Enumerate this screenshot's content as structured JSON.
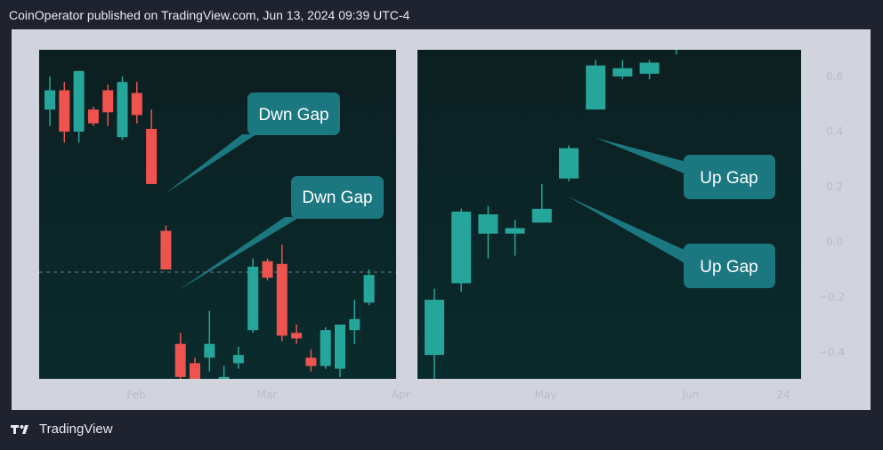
{
  "header": {
    "text": "CoinOperator published on TradingView.com, Jun 13, 2024 09:39 UTC-4"
  },
  "footer": {
    "brand": "TradingView"
  },
  "colors": {
    "up": "#26a69a",
    "down": "#ef5350",
    "panel": "#0b2224",
    "frame": "#d1d4dc",
    "callout": "#1b7780"
  },
  "chart_data": {
    "type": "candlestick",
    "title": "",
    "ylim": [
      -0.5,
      0.7
    ],
    "y_ticks": [
      "0.6",
      "0.4",
      "0.2",
      "0.0",
      "−0.2",
      "−0.4"
    ],
    "y_tick_values": [
      0.6,
      0.4,
      0.2,
      0.0,
      -0.2,
      -0.4
    ],
    "x_ticks": [
      "Feb",
      "Mar",
      "Apr",
      "May",
      "Jun",
      "24"
    ],
    "reference_line": -0.11,
    "panels": [
      {
        "name": "left",
        "candles": [
          {
            "o": 0.48,
            "c": 0.55,
            "h": 0.6,
            "l": 0.42
          },
          {
            "o": 0.55,
            "c": 0.4,
            "h": 0.58,
            "l": 0.36
          },
          {
            "o": 0.4,
            "c": 0.62,
            "h": 0.62,
            "l": 0.36
          },
          {
            "o": 0.48,
            "c": 0.43,
            "h": 0.49,
            "l": 0.42
          },
          {
            "o": 0.55,
            "c": 0.47,
            "h": 0.57,
            "l": 0.42
          },
          {
            "o": 0.38,
            "c": 0.58,
            "h": 0.6,
            "l": 0.37
          },
          {
            "o": 0.54,
            "c": 0.46,
            "h": 0.58,
            "l": 0.43
          },
          {
            "o": 0.41,
            "c": 0.21,
            "h": 0.48,
            "l": 0.21
          },
          {
            "o": 0.04,
            "c": -0.1,
            "h": 0.06,
            "l": -0.1
          },
          {
            "o": -0.37,
            "c": -0.49,
            "h": -0.33,
            "l": -0.5
          },
          {
            "o": -0.44,
            "c": -0.52,
            "h": -0.42,
            "l": -0.56
          },
          {
            "o": -0.42,
            "c": -0.37,
            "h": -0.25,
            "l": -0.47
          },
          {
            "o": -0.5,
            "c": -0.49,
            "h": -0.45,
            "l": -0.52
          },
          {
            "o": -0.44,
            "c": -0.41,
            "h": -0.38,
            "l": -0.46
          },
          {
            "o": -0.32,
            "c": -0.09,
            "h": -0.06,
            "l": -0.33
          },
          {
            "o": -0.07,
            "c": -0.13,
            "h": -0.06,
            "l": -0.14
          },
          {
            "o": -0.08,
            "c": -0.34,
            "h": -0.01,
            "l": -0.36
          },
          {
            "o": -0.33,
            "c": -0.35,
            "h": -0.3,
            "l": -0.37
          },
          {
            "o": -0.42,
            "c": -0.45,
            "h": -0.39,
            "l": -0.47
          },
          {
            "o": -0.45,
            "c": -0.32,
            "h": -0.31,
            "l": -0.46
          },
          {
            "o": -0.46,
            "c": -0.3,
            "h": -0.3,
            "l": -0.49
          },
          {
            "o": -0.32,
            "c": -0.28,
            "h": -0.21,
            "l": -0.37
          },
          {
            "o": -0.22,
            "c": -0.12,
            "h": -0.1,
            "l": -0.23
          }
        ]
      },
      {
        "name": "right",
        "candles": [
          {
            "o": -0.41,
            "c": -0.21,
            "h": -0.17,
            "l": -0.5
          },
          {
            "o": -0.15,
            "c": 0.11,
            "h": 0.12,
            "l": -0.18
          },
          {
            "o": 0.03,
            "c": 0.1,
            "h": 0.13,
            "l": -0.06
          },
          {
            "o": 0.03,
            "c": 0.05,
            "h": 0.08,
            "l": -0.05
          },
          {
            "o": 0.07,
            "c": 0.12,
            "h": 0.21,
            "l": 0.07
          },
          {
            "o": 0.23,
            "c": 0.34,
            "h": 0.35,
            "l": 0.22
          },
          {
            "o": 0.48,
            "c": 0.64,
            "h": 0.66,
            "l": 0.48
          },
          {
            "o": 0.6,
            "c": 0.63,
            "h": 0.66,
            "l": 0.59
          },
          {
            "o": 0.61,
            "c": 0.65,
            "h": 0.66,
            "l": 0.59
          },
          {
            "o": 0.71,
            "c": 0.74,
            "h": 0.76,
            "l": 0.68
          }
        ]
      }
    ],
    "annotations": [
      {
        "label": "Dwn Gap"
      },
      {
        "label": "Dwn Gap"
      },
      {
        "label": "Up Gap"
      },
      {
        "label": "Up Gap"
      }
    ]
  }
}
